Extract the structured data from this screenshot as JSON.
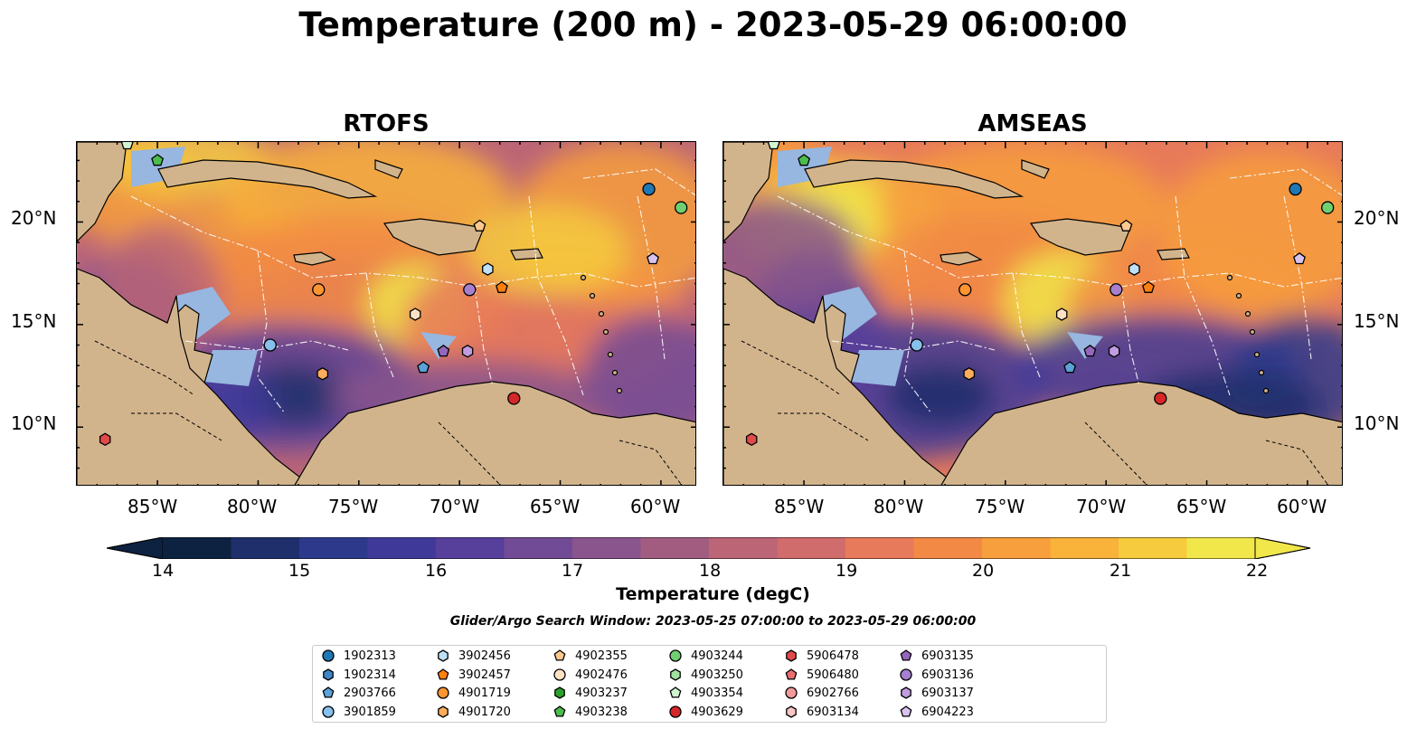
{
  "title": "Temperature (200 m) - 2023-05-29 06:00:00",
  "panels": [
    {
      "title": "RTOFS"
    },
    {
      "title": "AMSEAS"
    }
  ],
  "lat_labels": [
    "20°N",
    "15°N",
    "10°N"
  ],
  "lon_labels": [
    "85°W",
    "80°W",
    "75°W",
    "70°W",
    "65°W",
    "60°W"
  ],
  "colorbar": {
    "label": "Temperature (degC)",
    "ticks": [
      "14",
      "15",
      "16",
      "17",
      "18",
      "19",
      "20",
      "21",
      "22"
    ],
    "min": 14,
    "max": 22,
    "colors": [
      "#0d2240",
      "#1f2f6b",
      "#2d3a8c",
      "#3f3a9a",
      "#573f9c",
      "#724b96",
      "#8a558c",
      "#a25c80",
      "#bb6577",
      "#d16c6c",
      "#e77a5a",
      "#f28a45",
      "#f79e3d",
      "#f9b23a",
      "#f6cb3e",
      "#f1e64a"
    ]
  },
  "search_window": "Glider/Argo Search Window: 2023-05-25 07:00:00 to 2023-05-29 06:00:00",
  "legend": [
    {
      "id": "1902313",
      "shape": "circle",
      "color": "#1f77b4"
    },
    {
      "id": "1902314",
      "shape": "hexagon",
      "color": "#3f86c6"
    },
    {
      "id": "2903766",
      "shape": "pentagon",
      "color": "#5aa2d9"
    },
    {
      "id": "3901859",
      "shape": "circle",
      "color": "#86c0ec"
    },
    {
      "id": "3902456",
      "shape": "hexagon",
      "color": "#bfe0f7"
    },
    {
      "id": "3902457",
      "shape": "pentagon",
      "color": "#ff7f0e"
    },
    {
      "id": "4901719",
      "shape": "circle",
      "color": "#ff9530"
    },
    {
      "id": "4901720",
      "shape": "hexagon",
      "color": "#ffad5c"
    },
    {
      "id": "4902355",
      "shape": "pentagon",
      "color": "#ffc88f"
    },
    {
      "id": "4902476",
      "shape": "circle",
      "color": "#ffe2c4"
    },
    {
      "id": "4903237",
      "shape": "hexagon",
      "color": "#2ca02c"
    },
    {
      "id": "4903238",
      "shape": "pentagon",
      "color": "#4cbc4c"
    },
    {
      "id": "4903244",
      "shape": "circle",
      "color": "#70cf70"
    },
    {
      "id": "4903250",
      "shape": "hexagon",
      "color": "#a0e3a0"
    },
    {
      "id": "4903354",
      "shape": "pentagon",
      "color": "#d2f4d2"
    },
    {
      "id": "4903629",
      "shape": "circle",
      "color": "#d62728"
    },
    {
      "id": "5906478",
      "shape": "hexagon",
      "color": "#e04a4a"
    },
    {
      "id": "5906480",
      "shape": "pentagon",
      "color": "#ea6e70"
    },
    {
      "id": "6902766",
      "shape": "circle",
      "color": "#f29a9a"
    },
    {
      "id": "6903134",
      "shape": "hexagon",
      "color": "#f8c4c4"
    },
    {
      "id": "6903135",
      "shape": "pentagon",
      "color": "#9467bd"
    },
    {
      "id": "6903136",
      "shape": "circle",
      "color": "#a77fcf"
    },
    {
      "id": "6903137",
      "shape": "hexagon",
      "color": "#bf9de0"
    },
    {
      "id": "6904223",
      "shape": "pentagon",
      "color": "#d8c2f0"
    }
  ],
  "floats": [
    {
      "lon": -86.5,
      "lat": 23.8,
      "shape": "pentagon",
      "color": "#d2f4d2"
    },
    {
      "lon": -85.0,
      "lat": 23.0,
      "shape": "pentagon",
      "color": "#4cbc4c"
    },
    {
      "lon": -60.6,
      "lat": 21.6,
      "shape": "circle",
      "color": "#1f77b4"
    },
    {
      "lon": -59.0,
      "lat": 20.7,
      "shape": "circle",
      "color": "#70cf70"
    },
    {
      "lon": -69.0,
      "lat": 19.8,
      "shape": "pentagon",
      "color": "#ffc88f"
    },
    {
      "lon": -60.4,
      "lat": 18.2,
      "shape": "pentagon",
      "color": "#d8c2f0"
    },
    {
      "lon": -68.6,
      "lat": 17.7,
      "shape": "hexagon",
      "color": "#bfe0f7"
    },
    {
      "lon": -77.0,
      "lat": 16.7,
      "shape": "circle",
      "color": "#ff9530"
    },
    {
      "lon": -69.5,
      "lat": 16.7,
      "shape": "circle",
      "color": "#a77fcf"
    },
    {
      "lon": -67.9,
      "lat": 16.8,
      "shape": "pentagon",
      "color": "#ff7f0e"
    },
    {
      "lon": -72.2,
      "lat": 15.5,
      "shape": "hexagon",
      "color": "#ffe2c4"
    },
    {
      "lon": -79.4,
      "lat": 14.0,
      "shape": "circle",
      "color": "#86c0ec"
    },
    {
      "lon": -70.8,
      "lat": 13.7,
      "shape": "pentagon",
      "color": "#9467bd"
    },
    {
      "lon": -69.6,
      "lat": 13.7,
      "shape": "hexagon",
      "color": "#bf9de0"
    },
    {
      "lon": -71.8,
      "lat": 12.9,
      "shape": "pentagon",
      "color": "#5aa2d9"
    },
    {
      "lon": -76.8,
      "lat": 12.6,
      "shape": "hexagon",
      "color": "#ffad5c"
    },
    {
      "lon": -67.3,
      "lat": 11.4,
      "shape": "circle",
      "color": "#d62728"
    },
    {
      "lon": -87.6,
      "lat": 9.4,
      "shape": "hexagon",
      "color": "#e04a4a"
    }
  ]
}
